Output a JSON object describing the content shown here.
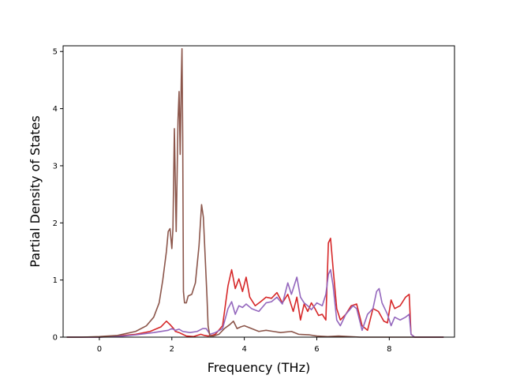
{
  "chart_data": {
    "type": "line",
    "title": "",
    "xlabel": "Frequency (THz)",
    "ylabel": "Partial Density of States",
    "xlim": [
      -1.0,
      9.8
    ],
    "ylim": [
      0,
      5.1
    ],
    "xticks": [
      0,
      2,
      4,
      6,
      8
    ],
    "yticks": [
      0,
      1,
      2,
      3,
      4,
      5
    ],
    "grid": false,
    "legend": "none",
    "series": [
      {
        "color": "#d62728",
        "x": [
          -0.9,
          0.0,
          0.5,
          1.0,
          1.4,
          1.7,
          1.85,
          1.95,
          2.05,
          2.1,
          2.2,
          2.3,
          2.4,
          2.6,
          2.8,
          2.9,
          3.0,
          3.1,
          3.2,
          3.4,
          3.55,
          3.65,
          3.75,
          3.85,
          3.95,
          4.05,
          4.15,
          4.3,
          4.45,
          4.6,
          4.75,
          4.9,
          5.05,
          5.2,
          5.35,
          5.45,
          5.55,
          5.65,
          5.75,
          5.85,
          5.95,
          6.05,
          6.15,
          6.25,
          6.32,
          6.38,
          6.45,
          6.55,
          6.65,
          6.8,
          6.95,
          7.1,
          7.25,
          7.4,
          7.55,
          7.7,
          7.85,
          7.95,
          8.05,
          8.15,
          8.3,
          8.45,
          8.55,
          8.6,
          8.7,
          9.0,
          9.5
        ],
        "y": [
          0,
          0,
          0.02,
          0.05,
          0.1,
          0.18,
          0.28,
          0.22,
          0.15,
          0.1,
          0.08,
          0.05,
          0.02,
          0.01,
          0.05,
          0.03,
          0.02,
          0.03,
          0.05,
          0.2,
          0.9,
          1.18,
          0.85,
          1.02,
          0.8,
          1.05,
          0.7,
          0.55,
          0.62,
          0.7,
          0.68,
          0.78,
          0.6,
          0.75,
          0.45,
          0.7,
          0.3,
          0.58,
          0.45,
          0.6,
          0.5,
          0.38,
          0.4,
          0.3,
          1.65,
          1.73,
          1.2,
          0.5,
          0.3,
          0.4,
          0.55,
          0.58,
          0.2,
          0.12,
          0.5,
          0.45,
          0.28,
          0.25,
          0.65,
          0.5,
          0.55,
          0.7,
          0.75,
          0.05,
          0,
          0,
          0
        ]
      },
      {
        "color": "#9467bd",
        "x": [
          -0.9,
          0.0,
          0.5,
          1.0,
          1.5,
          1.9,
          2.0,
          2.1,
          2.2,
          2.3,
          2.5,
          2.7,
          2.85,
          2.95,
          3.05,
          3.2,
          3.4,
          3.55,
          3.65,
          3.75,
          3.85,
          3.95,
          4.05,
          4.2,
          4.4,
          4.6,
          4.75,
          4.9,
          5.05,
          5.2,
          5.3,
          5.45,
          5.55,
          5.65,
          5.75,
          5.85,
          6.0,
          6.15,
          6.25,
          6.32,
          6.38,
          6.45,
          6.55,
          6.65,
          6.8,
          7.0,
          7.1,
          7.25,
          7.4,
          7.55,
          7.65,
          7.72,
          7.8,
          7.95,
          8.05,
          8.15,
          8.3,
          8.45,
          8.55,
          8.6,
          8.7,
          9.0,
          9.5
        ],
        "y": [
          0,
          0,
          0.01,
          0.04,
          0.08,
          0.12,
          0.15,
          0.12,
          0.14,
          0.1,
          0.08,
          0.1,
          0.15,
          0.15,
          0.05,
          0.08,
          0.15,
          0.5,
          0.62,
          0.4,
          0.55,
          0.52,
          0.58,
          0.5,
          0.45,
          0.6,
          0.62,
          0.7,
          0.58,
          0.95,
          0.75,
          1.05,
          0.7,
          0.6,
          0.55,
          0.48,
          0.6,
          0.55,
          0.75,
          1.1,
          1.18,
          0.9,
          0.3,
          0.2,
          0.4,
          0.55,
          0.5,
          0.12,
          0.4,
          0.5,
          0.8,
          0.85,
          0.6,
          0.4,
          0.2,
          0.35,
          0.3,
          0.35,
          0.4,
          0.05,
          0,
          0,
          0
        ]
      },
      {
        "color": "#8c564b",
        "x": [
          -0.9,
          -0.5,
          0.0,
          0.5,
          1.0,
          1.3,
          1.5,
          1.65,
          1.75,
          1.85,
          1.9,
          1.95,
          2.0,
          2.03,
          2.07,
          2.12,
          2.17,
          2.2,
          2.23,
          2.26,
          2.28,
          2.3,
          2.32,
          2.35,
          2.4,
          2.45,
          2.55,
          2.65,
          2.75,
          2.82,
          2.87,
          2.92,
          2.97,
          3.0,
          3.05,
          3.15,
          3.3,
          3.45,
          3.6,
          3.7,
          3.8,
          3.9,
          4.0,
          4.2,
          4.4,
          4.6,
          4.8,
          5.0,
          5.3,
          5.5,
          5.8,
          6.0,
          6.3,
          6.6,
          6.9,
          7.2,
          7.5,
          8.0,
          8.5,
          9.0,
          9.5
        ],
        "y": [
          0,
          0,
          0.01,
          0.03,
          0.1,
          0.2,
          0.35,
          0.6,
          1.0,
          1.5,
          1.85,
          1.9,
          1.55,
          1.9,
          3.65,
          1.85,
          3.8,
          4.3,
          3.2,
          4.5,
          5.05,
          3.5,
          0.8,
          0.6,
          0.6,
          0.72,
          0.75,
          0.95,
          1.6,
          2.32,
          2.1,
          1.4,
          0.7,
          0.2,
          0.02,
          0.02,
          0.05,
          0.15,
          0.22,
          0.28,
          0.15,
          0.18,
          0.2,
          0.15,
          0.1,
          0.12,
          0.1,
          0.08,
          0.1,
          0.05,
          0.04,
          0.02,
          0.01,
          0.02,
          0.01,
          0,
          0,
          0,
          0,
          0,
          0
        ]
      }
    ]
  }
}
